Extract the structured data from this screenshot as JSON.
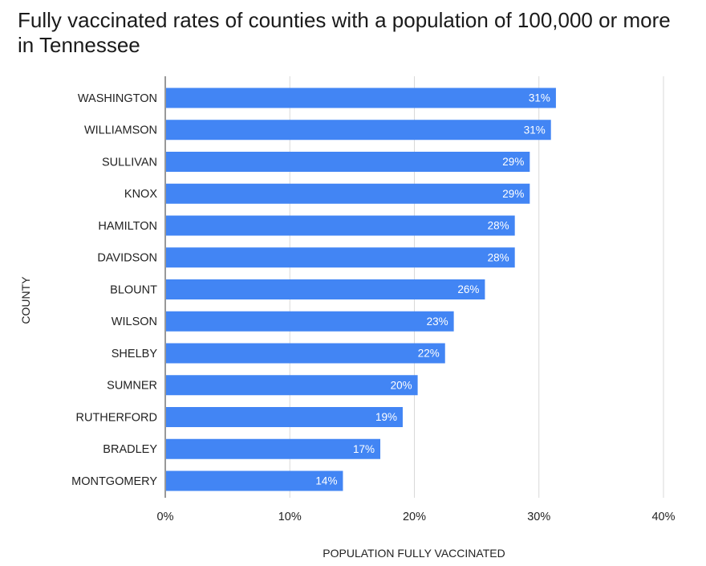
{
  "chart_data": {
    "type": "bar",
    "orientation": "horizontal",
    "title": "Fully vaccinated rates of counties with a population of 100,000 or more in Tennessee",
    "xlabel": "POPULATION FULLY VACCINATED",
    "ylabel": "COUNTY",
    "categories": [
      "WASHINGTON",
      "WILLIAMSON",
      "SULLIVAN",
      "KNOX",
      "HAMILTON",
      "DAVIDSON",
      "BLOUNT",
      "WILSON",
      "SHELBY",
      "SUMNER",
      "RUTHERFORD",
      "BRADLEY",
      "MONTGOMERY"
    ],
    "values": [
      31.3,
      30.9,
      29.2,
      29.2,
      28.0,
      28.0,
      25.6,
      23.1,
      22.4,
      20.2,
      19.0,
      17.2,
      14.2
    ],
    "data_labels": [
      "31%",
      "31%",
      "29%",
      "29%",
      "28%",
      "28%",
      "26%",
      "23%",
      "22%",
      "20%",
      "19%",
      "17%",
      "14%"
    ],
    "xlim": [
      0,
      40
    ],
    "xticks": [
      0,
      10,
      20,
      30,
      40
    ],
    "xtick_labels": [
      "0%",
      "10%",
      "20%",
      "30%",
      "40%"
    ],
    "grid": true,
    "bar_color": "#4285f4"
  }
}
